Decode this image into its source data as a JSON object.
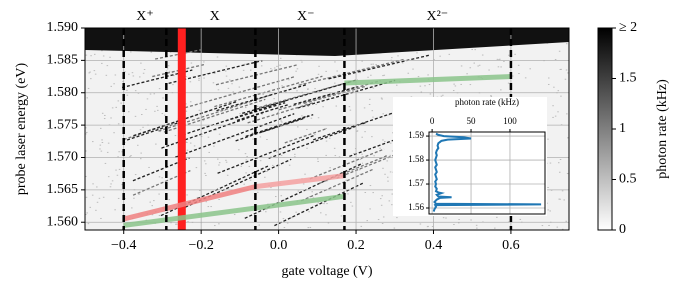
{
  "chart_data": [
    {
      "type": "heatmap",
      "xlabel": "gate voltage (V)",
      "ylabel": "probe laser energy (eV)",
      "xlim": [
        -0.5,
        0.75
      ],
      "xticks": [
        {
          "value": -0.4,
          "label": "−0.4"
        },
        {
          "value": -0.2,
          "label": "−0.2"
        },
        {
          "value": 0,
          "label": "0.0"
        },
        0.2,
        0.4,
        0.6
      ],
      "ylim": [
        1.5588,
        1.59
      ],
      "yticks": [
        {
          "value": 1.56,
          "label": "1.560"
        },
        {
          "value": 1.565,
          "label": "1.565"
        },
        {
          "value": 1.57,
          "label": "1.570"
        },
        {
          "value": 1.575,
          "label": "1.575"
        },
        {
          "value": 1.58,
          "label": "1.580"
        },
        {
          "value": 1.585,
          "label": "1.585"
        },
        {
          "value": 1.59,
          "label": "1.590"
        }
      ],
      "grid": true,
      "annotations": [
        {
          "text": "X⁺",
          "x": -0.345
        },
        {
          "text": "X",
          "x": -0.165
        },
        {
          "text": "X⁻",
          "x": 0.07
        },
        {
          "text": "X²⁻",
          "x": 0.41
        }
      ],
      "dashed_lines": [
        -0.4,
        -0.29,
        -0.06,
        0.17,
        0.6
      ],
      "highlight_band": {
        "x": -0.25,
        "color": "#ff2020"
      },
      "fit_lines": [
        {
          "color": "#f08080",
          "x": [
            -0.4,
            -0.06
          ],
          "y": [
            1.5605,
            1.5655
          ]
        },
        {
          "color": "#f4a0a0",
          "x": [
            -0.06,
            0.17
          ],
          "y": [
            1.5655,
            1.5672
          ]
        },
        {
          "color": "#8bc48b",
          "x": [
            -0.4,
            0.17
          ],
          "y": [
            1.5595,
            1.564
          ]
        },
        {
          "color": "#8bc48b",
          "x": [
            0.17,
            0.6
          ],
          "y": [
            1.5815,
            1.5825
          ]
        }
      ],
      "colorbar": {
        "label": "photon rate (kHz)",
        "clim": [
          0,
          2
        ],
        "ticks": [
          0,
          0.5,
          1,
          1.5,
          {
            "value": 2,
            "label": "≥ 2"
          }
        ]
      }
    },
    {
      "type": "line",
      "title": "photon rate (kHz)",
      "color": "#1f77b4",
      "energy": [
        1.5585,
        1.5595,
        1.5605,
        1.5612,
        1.5615,
        1.5618,
        1.5625,
        1.5635,
        1.5642,
        1.5645,
        1.5648,
        1.5655,
        1.5662,
        1.5665,
        1.567,
        1.568,
        1.569,
        1.57,
        1.571,
        1.572,
        1.573,
        1.574,
        1.575,
        1.576,
        1.577,
        1.578,
        1.579,
        1.58,
        1.581,
        1.582,
        1.583,
        1.584,
        1.585,
        1.586,
        1.587,
        1.5875,
        1.588,
        1.5885,
        1.589,
        1.5895,
        1.59,
        1.5905,
        1.591
      ],
      "values": [
        2,
        3,
        5,
        4,
        140,
        5,
        3,
        6,
        10,
        25,
        8,
        6,
        12,
        8,
        5,
        6,
        4,
        5,
        4,
        6,
        5,
        4,
        6,
        5,
        4,
        6,
        5,
        4,
        5,
        6,
        5,
        6,
        8,
        7,
        8,
        10,
        12,
        20,
        50,
        40,
        15,
        8,
        5
      ],
      "xlim": [
        -4,
        145
      ],
      "xticks": [
        0,
        50,
        100
      ],
      "ylim": [
        1.5575,
        1.5917
      ],
      "yticks": [
        1.56,
        1.57,
        1.58,
        1.59
      ],
      "grid": true
    }
  ]
}
